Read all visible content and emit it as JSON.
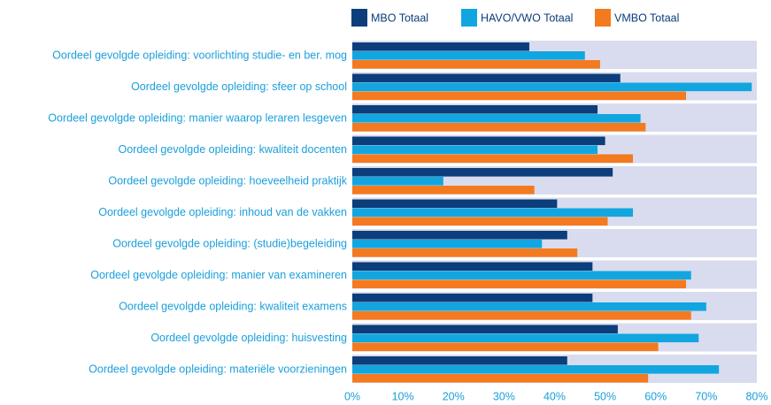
{
  "chart_data": {
    "type": "bar",
    "orientation": "horizontal",
    "categories": [
      "Oordeel gevolgde opleiding: voorlichting studie- en ber. mog",
      "Oordeel gevolgde opleiding: sfeer op school",
      "Oordeel gevolgde opleiding: manier waarop leraren lesgeven",
      "Oordeel gevolgde opleiding: kwaliteit docenten",
      "Oordeel gevolgde opleiding: hoeveelheid praktijk",
      "Oordeel gevolgde opleiding: inhoud van de vakken",
      "Oordeel gevolgde opleiding: (studie)begeleiding",
      "Oordeel gevolgde opleiding: manier van examineren",
      "Oordeel gevolgde opleiding: kwaliteit examens",
      "Oordeel gevolgde opleiding: huisvesting",
      "Oordeel gevolgde opleiding: materiële voorzieningen"
    ],
    "series": [
      {
        "name": "MBO Totaal",
        "color": "#0b3e7a",
        "values": [
          35,
          53,
          48.5,
          50,
          51.5,
          40.5,
          42.5,
          47.5,
          47.5,
          52.5,
          42.5
        ]
      },
      {
        "name": "HAVO/VWO Totaal",
        "color": "#12a6e1",
        "values": [
          46,
          79,
          57,
          48.5,
          18,
          55.5,
          37.5,
          67,
          70,
          68.5,
          72.5
        ]
      },
      {
        "name": "VMBO Totaal",
        "color": "#f47a20",
        "values": [
          49,
          66,
          58,
          55.5,
          36,
          50.5,
          44.5,
          66,
          67,
          60.5,
          58.5
        ]
      }
    ],
    "xlim": [
      0,
      80
    ],
    "xticks": [
      {
        "value": 0,
        "label": "0%"
      },
      {
        "value": 10,
        "label": "10%"
      },
      {
        "value": 20,
        "label": "20%"
      },
      {
        "value": 30,
        "label": "30%"
      },
      {
        "value": 40,
        "label": "40%"
      },
      {
        "value": 50,
        "label": "50%"
      },
      {
        "value": 60,
        "label": "60%"
      },
      {
        "value": 70,
        "label": "70%"
      },
      {
        "value": 80,
        "label": "80%"
      }
    ],
    "legend": "top",
    "band_color": "#d9dcee",
    "label_color": "#1a9fdb"
  }
}
